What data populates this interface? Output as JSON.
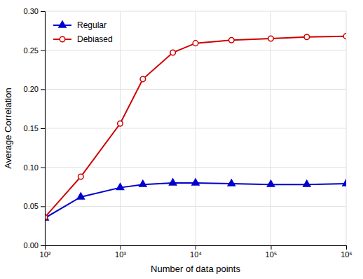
{
  "chart_data": {
    "type": "line",
    "xlabel": "Number of data points",
    "ylabel": "Average Correlation",
    "x": [
      100,
      300,
      1000,
      2000,
      5000,
      10000,
      30000,
      100000,
      300000,
      1000000
    ],
    "series": [
      {
        "name": "Regular",
        "color": "#0000cc",
        "marker": "triangle-up",
        "values": [
          0.035,
          0.062,
          0.074,
          0.078,
          0.08,
          0.08,
          0.079,
          0.078,
          0.078,
          0.079
        ]
      },
      {
        "name": "Debiased",
        "color": "#cc0000",
        "marker": "circle-open",
        "values": [
          0.036,
          0.088,
          0.156,
          0.213,
          0.247,
          0.259,
          0.263,
          0.265,
          0.267,
          0.268
        ]
      }
    ],
    "log": "x",
    "xlim": [
      100,
      1000000
    ],
    "xticks": [
      {
        "value": 100,
        "label": "10²"
      },
      {
        "value": 1000,
        "label": "10³"
      },
      {
        "value": 10000,
        "label": "10⁴"
      },
      {
        "value": 100000,
        "label": "10⁵"
      },
      {
        "value": 1000000,
        "label": "10⁶"
      }
    ],
    "ylim": [
      0.0,
      0.3
    ],
    "yticks": [
      {
        "value": 0,
        "label": "0.00"
      },
      0.05,
      {
        "value": 0.1,
        "label": "0.10"
      },
      0.15,
      {
        "value": 0.2,
        "label": "0.20"
      },
      0.25,
      {
        "value": 0.3,
        "label": "0.30"
      }
    ],
    "grid": true,
    "legend": "upper left"
  }
}
